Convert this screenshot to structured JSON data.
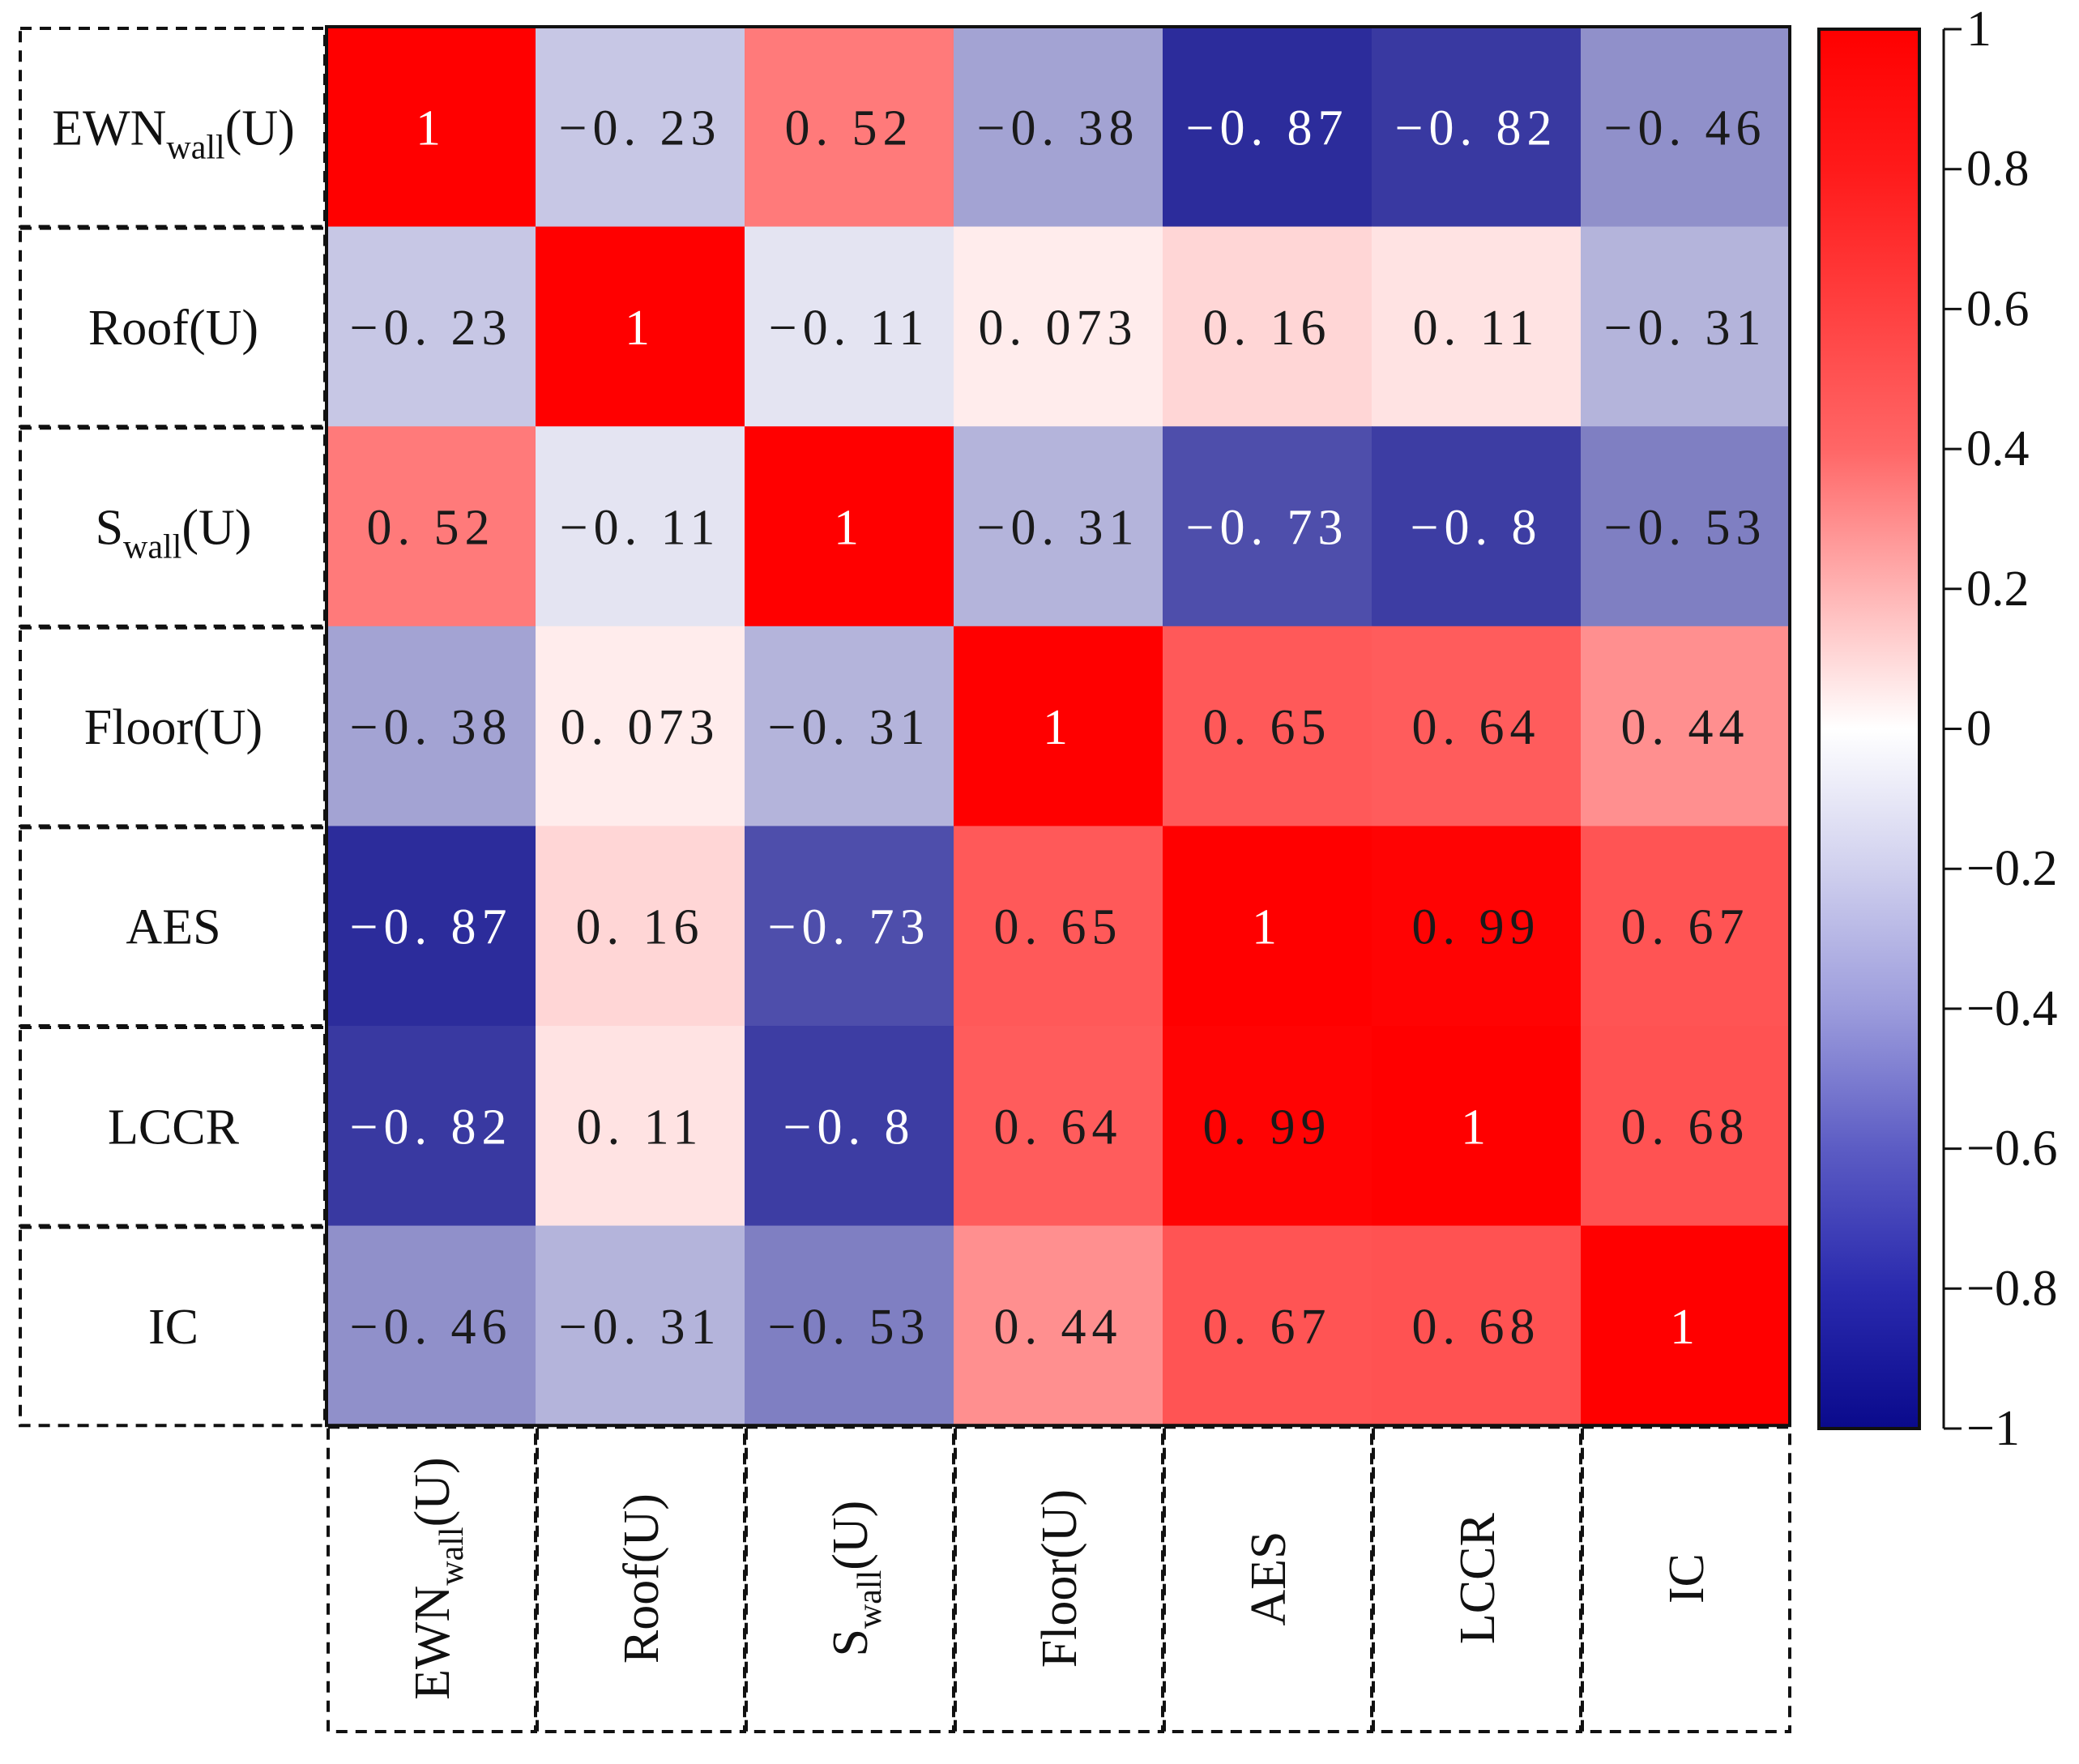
{
  "chart_data": {
    "type": "heatmap",
    "title": "",
    "variables": [
      {
        "base": "EWN",
        "sub": "wall",
        "suffix": "(U)"
      },
      {
        "base": "Roof(U)",
        "sub": "",
        "suffix": ""
      },
      {
        "base": "S",
        "sub": "wall",
        "suffix": "(U)"
      },
      {
        "base": "Floor(U)",
        "sub": "",
        "suffix": ""
      },
      {
        "base": "AES",
        "sub": "",
        "suffix": ""
      },
      {
        "base": "LCCR",
        "sub": "",
        "suffix": ""
      },
      {
        "base": "IC",
        "sub": "",
        "suffix": ""
      }
    ],
    "values": [
      [
        1,
        -0.23,
        0.52,
        -0.38,
        -0.87,
        -0.82,
        -0.46
      ],
      [
        -0.23,
        1,
        -0.11,
        0.073,
        0.16,
        0.11,
        -0.31
      ],
      [
        0.52,
        -0.11,
        1,
        -0.31,
        -0.73,
        -0.8,
        -0.53
      ],
      [
        -0.38,
        0.073,
        -0.31,
        1,
        0.65,
        0.64,
        0.44
      ],
      [
        -0.87,
        0.16,
        -0.73,
        0.65,
        1,
        0.99,
        0.67
      ],
      [
        -0.82,
        0.11,
        -0.8,
        0.64,
        0.99,
        1,
        0.68
      ],
      [
        -0.46,
        -0.31,
        -0.53,
        0.44,
        0.67,
        0.68,
        1
      ]
    ],
    "value_labels": [
      [
        "1",
        "−0. 23",
        "0. 52",
        "−0. 38",
        "−0. 87",
        "−0. 82",
        "−0. 46"
      ],
      [
        "−0. 23",
        "1",
        "−0. 11",
        "0. 073",
        "0. 16",
        "0. 11",
        "−0. 31"
      ],
      [
        "0. 52",
        "−0. 11",
        "1",
        "−0. 31",
        "−0. 73",
        "−0. 8",
        "−0. 53"
      ],
      [
        "−0. 38",
        "0. 073",
        "−0. 31",
        "1",
        "0. 65",
        "0. 64",
        "0. 44"
      ],
      [
        "−0. 87",
        "0. 16",
        "−0. 73",
        "0. 65",
        "1",
        "0. 99",
        "0. 67"
      ],
      [
        "−0. 82",
        "0. 11",
        "−0. 8",
        "0. 64",
        "0. 99",
        "1",
        "0. 68"
      ],
      [
        "−0. 46",
        "−0. 31",
        "−0. 53",
        "0. 44",
        "0. 67",
        "0. 68",
        "1"
      ]
    ],
    "colorbar": {
      "range": [
        -1,
        1
      ],
      "ticks": [
        1,
        0.8,
        0.6,
        0.4,
        0.2,
        0,
        -0.2,
        -0.4,
        -0.6,
        -0.8,
        -1
      ],
      "tick_labels": [
        "1",
        "0.8",
        "0.6",
        "0.4",
        "0.2",
        "0",
        "−0.2",
        "−0.4",
        "−0.6",
        "−0.8",
        "−1"
      ],
      "colors": {
        "low": "#0d0d8c",
        "mid": "#ffffff",
        "high": "#ff0000"
      },
      "position": "right"
    },
    "grid": false,
    "legend": "none"
  }
}
